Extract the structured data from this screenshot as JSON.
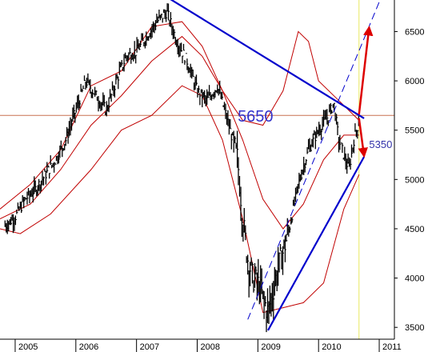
{
  "chart_data": {
    "type": "candlestick",
    "title": "",
    "xlabel": "",
    "ylabel": "",
    "x_ticks": [
      "2005",
      "2006",
      "2007",
      "2008",
      "2009",
      "2010",
      "2011"
    ],
    "y_ticks": [
      3500,
      4000,
      4500,
      5000,
      5500,
      6000,
      6500
    ],
    "ylim": [
      3380,
      6820
    ],
    "xlim": [
      "2004-10",
      "2011-04"
    ],
    "grid": false,
    "y_axis_side": "right",
    "price_series": {
      "name": "",
      "points": [
        [
          "2004-11",
          4530
        ],
        [
          "2005-01",
          4620
        ],
        [
          "2005-03",
          4800
        ],
        [
          "2005-05",
          4900
        ],
        [
          "2005-07",
          5050
        ],
        [
          "2005-09",
          5200
        ],
        [
          "2005-11",
          5400
        ],
        [
          "2006-01",
          5700
        ],
        [
          "2006-03",
          6000
        ],
        [
          "2006-05",
          5850
        ],
        [
          "2006-07",
          5700
        ],
        [
          "2006-09",
          6000
        ],
        [
          "2006-11",
          6250
        ],
        [
          "2007-01",
          6300
        ],
        [
          "2007-03",
          6450
        ],
        [
          "2007-05",
          6600
        ],
        [
          "2007-07",
          6700
        ],
        [
          "2007-09",
          6400
        ],
        [
          "2007-11",
          6200
        ],
        [
          "2008-01",
          5900
        ],
        [
          "2008-03",
          5800
        ],
        [
          "2008-05",
          5950
        ],
        [
          "2008-07",
          5600
        ],
        [
          "2008-09",
          5200
        ],
        [
          "2008-10",
          4600
        ],
        [
          "2008-11",
          4200
        ],
        [
          "2008-12",
          4000
        ],
        [
          "2009-01",
          3950
        ],
        [
          "2009-03",
          3650
        ],
        [
          "2009-05",
          4100
        ],
        [
          "2009-07",
          4450
        ],
        [
          "2009-09",
          4950
        ],
        [
          "2009-11",
          5300
        ],
        [
          "2010-01",
          5500
        ],
        [
          "2010-03",
          5650
        ],
        [
          "2010-04",
          5780
        ],
        [
          "2010-05",
          5400
        ],
        [
          "2010-07",
          5100
        ],
        [
          "2010-08",
          5400
        ],
        [
          "2010-09",
          5600
        ]
      ]
    },
    "indicators": [
      {
        "name": "",
        "color": "#c00000",
        "style": "upper-band",
        "points": [
          [
            "2004-10",
            4700
          ],
          [
            "2005-04",
            4950
          ],
          [
            "2005-10",
            5300
          ],
          [
            "2006-04",
            5950
          ],
          [
            "2006-10",
            6100
          ],
          [
            "2007-04",
            6550
          ],
          [
            "2007-10",
            6600
          ],
          [
            "2008-02",
            6350
          ],
          [
            "2008-06",
            5900
          ],
          [
            "2008-10",
            5600
          ],
          [
            "2009-02",
            5550
          ],
          [
            "2009-06",
            5900
          ],
          [
            "2009-09",
            6500
          ],
          [
            "2009-11",
            6400
          ],
          [
            "2010-01",
            6000
          ],
          [
            "2010-05",
            5800
          ],
          [
            "2010-09",
            5600
          ]
        ]
      },
      {
        "name": "",
        "color": "#c00000",
        "style": "moving-average",
        "points": [
          [
            "2004-10",
            4600
          ],
          [
            "2005-04",
            4750
          ],
          [
            "2005-10",
            5100
          ],
          [
            "2006-04",
            5550
          ],
          [
            "2006-10",
            5850
          ],
          [
            "2007-04",
            6200
          ],
          [
            "2007-10",
            6450
          ],
          [
            "2008-02",
            6250
          ],
          [
            "2008-06",
            5900
          ],
          [
            "2008-10",
            5400
          ],
          [
            "2009-02",
            4800
          ],
          [
            "2009-06",
            4500
          ],
          [
            "2009-10",
            4750
          ],
          [
            "2010-02",
            5200
          ],
          [
            "2010-06",
            5450
          ],
          [
            "2010-09",
            5450
          ]
        ]
      },
      {
        "name": "",
        "color": "#c00000",
        "style": "lower-band",
        "points": [
          [
            "2004-10",
            4500
          ],
          [
            "2005-02",
            4450
          ],
          [
            "2005-08",
            4650
          ],
          [
            "2006-04",
            5100
          ],
          [
            "2006-10",
            5500
          ],
          [
            "2007-04",
            5650
          ],
          [
            "2007-10",
            5950
          ],
          [
            "2008-02",
            5850
          ],
          [
            "2008-06",
            5400
          ],
          [
            "2008-10",
            4600
          ],
          [
            "2009-02",
            3650
          ],
          [
            "2009-06",
            3700
          ],
          [
            "2009-10",
            3750
          ],
          [
            "2010-02",
            3950
          ],
          [
            "2010-06",
            4700
          ],
          [
            "2010-09",
            5050
          ]
        ]
      }
    ],
    "trendlines": [
      {
        "name": "",
        "color": "#0000cc",
        "style": "solid",
        "from": [
          "2007-07",
          6850
        ],
        "to": [
          "2010-10",
          5620
        ]
      },
      {
        "name": "",
        "color": "#0000cc",
        "style": "solid",
        "from": [
          "2009-03",
          3470
        ],
        "to": [
          "2010-10",
          5230
        ]
      },
      {
        "name": "",
        "color": "#0000cc",
        "style": "dashed",
        "from": [
          "2008-11",
          3580
        ],
        "to": [
          "2011-01",
          6800
        ]
      }
    ],
    "reference_lines": [
      {
        "name": "",
        "orientation": "horizontal",
        "value": 5650,
        "color": "#c87050"
      },
      {
        "name": "",
        "orientation": "vertical",
        "value": "2010-09",
        "color": "#e8e860"
      }
    ],
    "arrows": [
      {
        "name": "",
        "color": "#dd0000",
        "from": [
          "2010-09",
          5660
        ],
        "to": [
          "2010-11",
          6540
        ]
      },
      {
        "name": "",
        "color": "#dd0000",
        "from": [
          "2010-09",
          5620
        ],
        "to": [
          "2010-10",
          5240
        ]
      }
    ],
    "annotations": [
      {
        "text": "5650",
        "color": "#3333cc",
        "at": [
          "2008-09",
          5650
        ]
      },
      {
        "text": "5350",
        "color": "#3333aa",
        "at": [
          "2010-11",
          5350
        ]
      }
    ]
  }
}
